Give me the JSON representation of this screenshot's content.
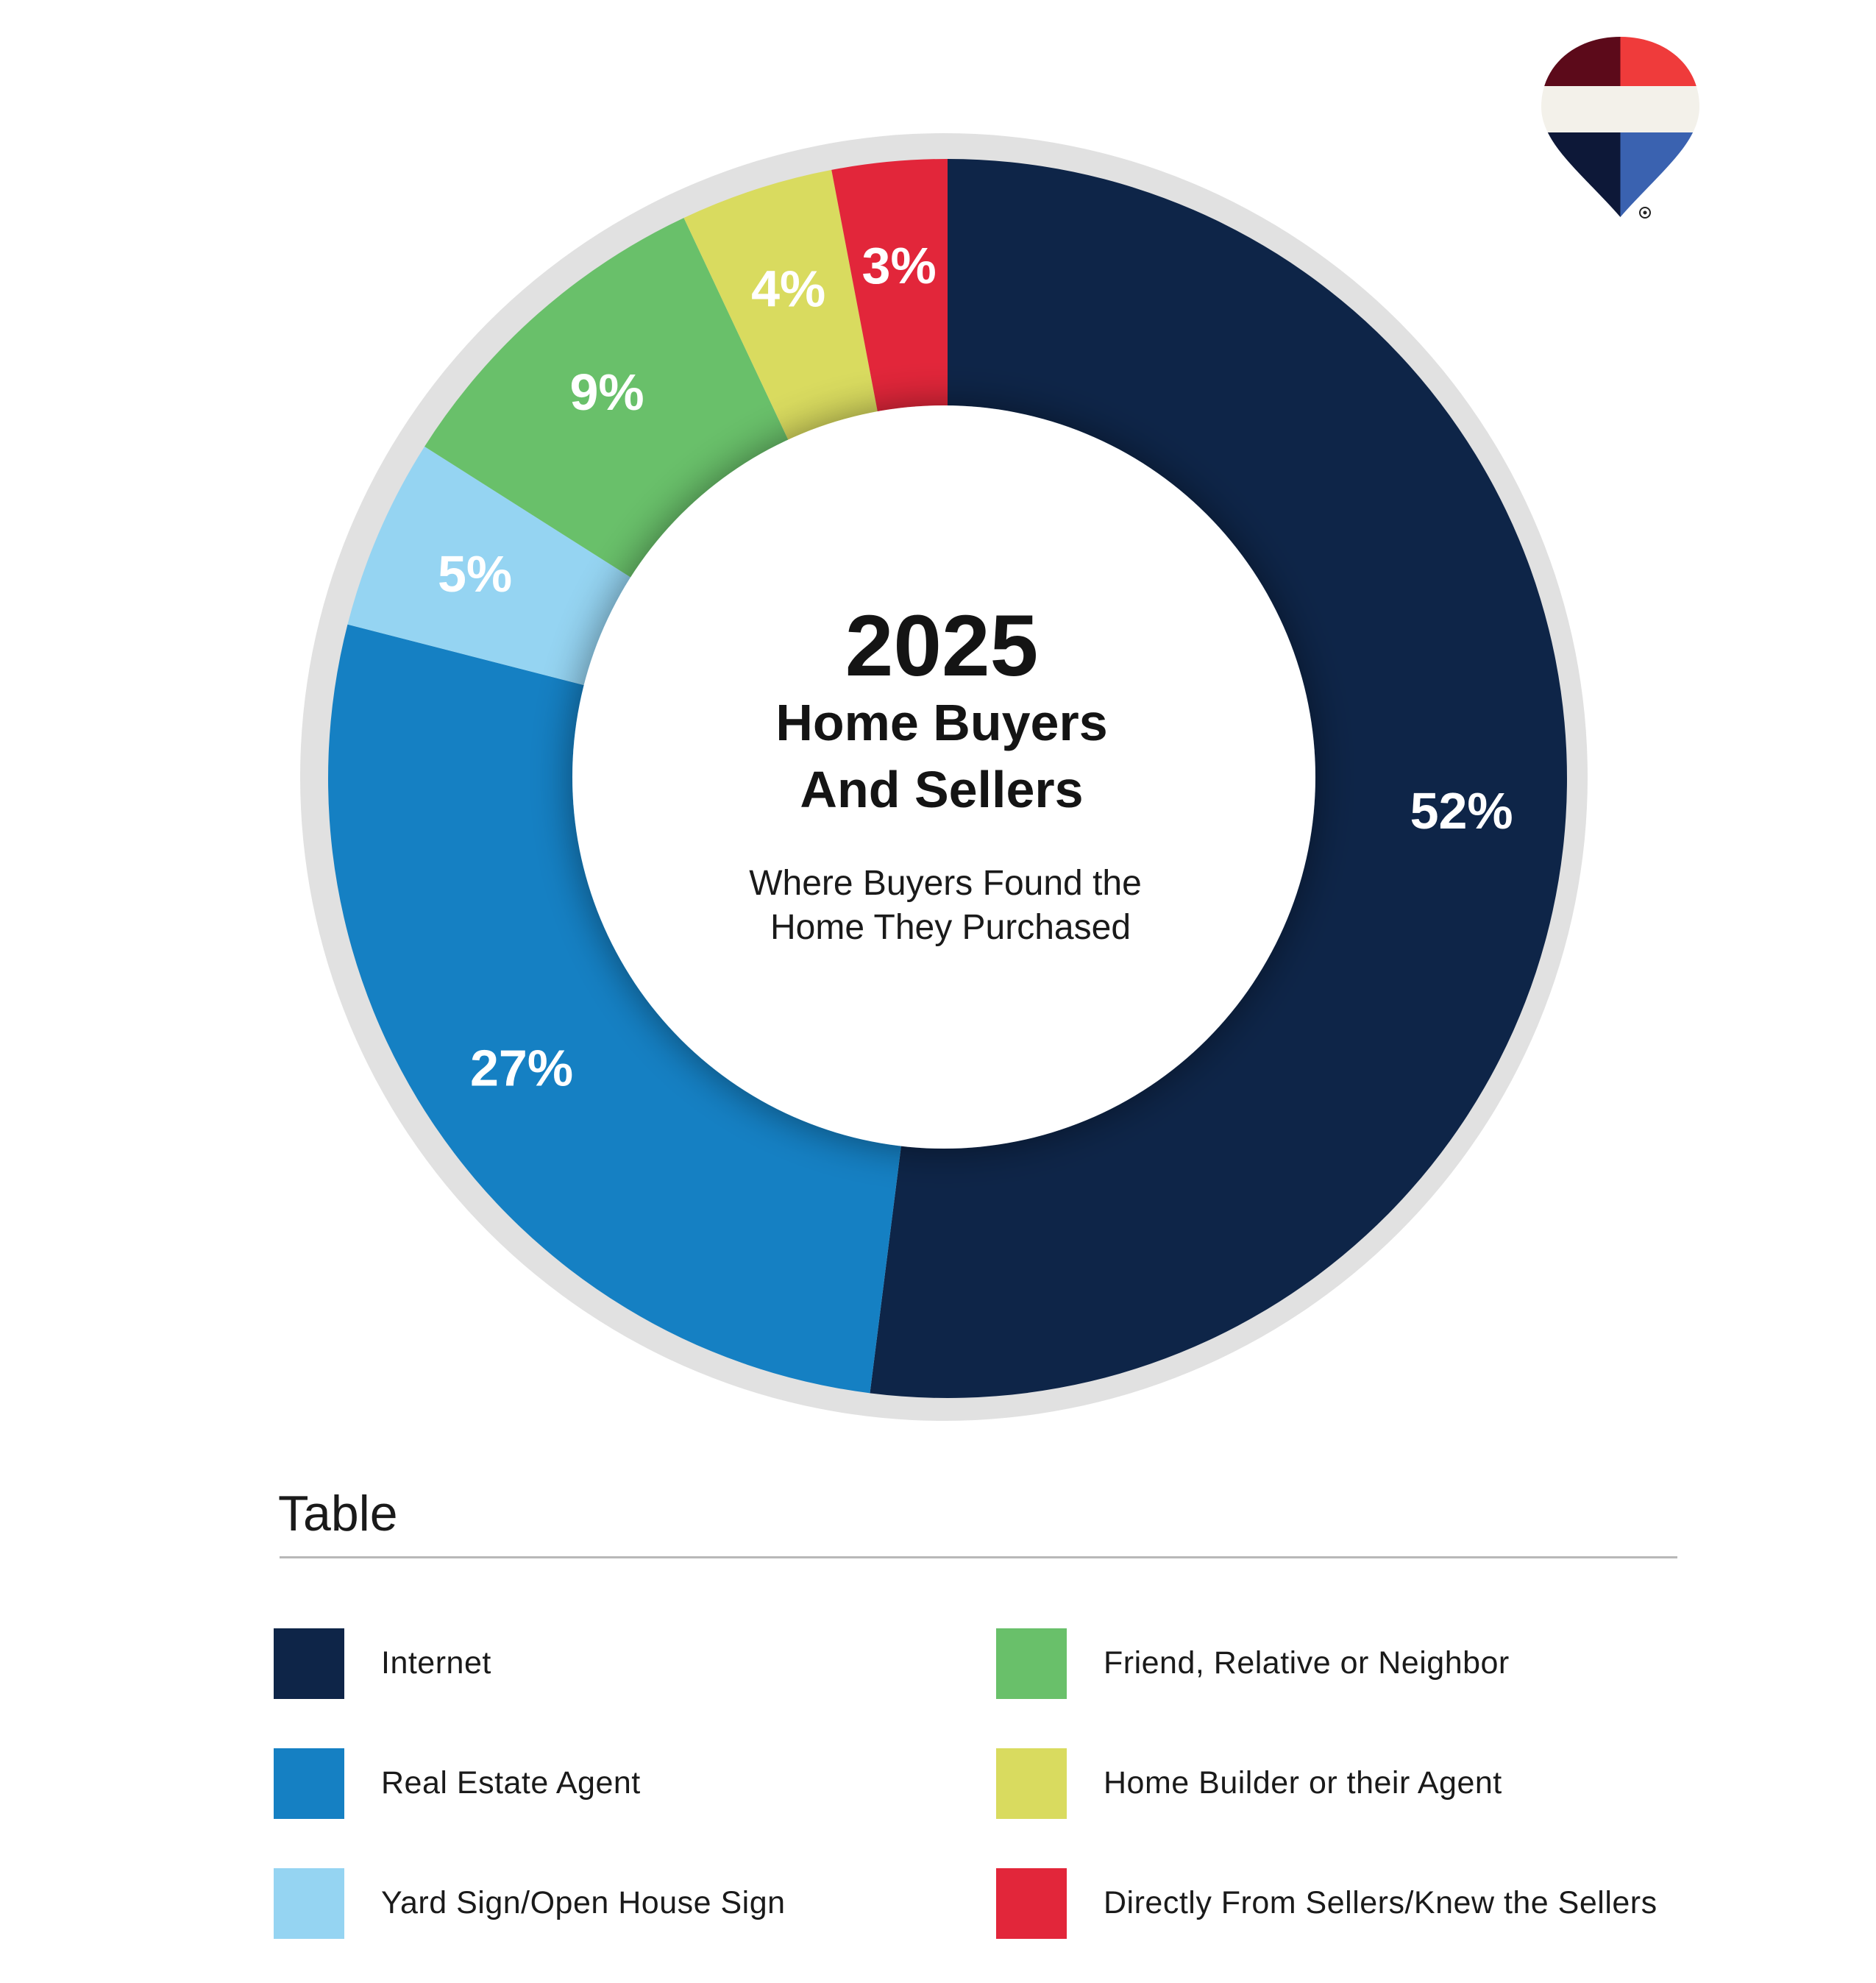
{
  "chart_data": {
    "type": "pie",
    "style": "donut",
    "center_text": {
      "year": "2025",
      "title_line1": "Home Buyers",
      "title_line2": "And Sellers",
      "subtitle_line1": "Where Buyers Found the",
      "subtitle_line2": "Home They Purchased"
    },
    "slices": [
      {
        "name": "Internet",
        "value": 52,
        "label": "52%",
        "color": "#0E2548"
      },
      {
        "name": "Real Estate Agent",
        "value": 27,
        "label": "27%",
        "color": "#1580C3"
      },
      {
        "name": "Yard Sign/Open House Sign",
        "value": 5,
        "label": "5%",
        "color": "#95D4F2"
      },
      {
        "name": "Friend, Relative or Neighbor",
        "value": 9,
        "label": "9%",
        "color": "#69C06A"
      },
      {
        "name": "Home Builder or their Agent",
        "value": 4,
        "label": "4%",
        "color": "#D9DB5F"
      },
      {
        "name": "Directly From Sellers/Knew the Sellers",
        "value": 3,
        "label": "3%",
        "color": "#E2263A"
      }
    ],
    "ring_color": "#E1E1E1",
    "legend_placement": "bottom"
  },
  "legend": {
    "title": "Table"
  },
  "logo": {
    "icon": "balloon-logo-icon",
    "colors": [
      "#5C0A1A",
      "#EF3B3B",
      "#F3F1EA",
      "#0D1838",
      "#3A62B0"
    ]
  }
}
